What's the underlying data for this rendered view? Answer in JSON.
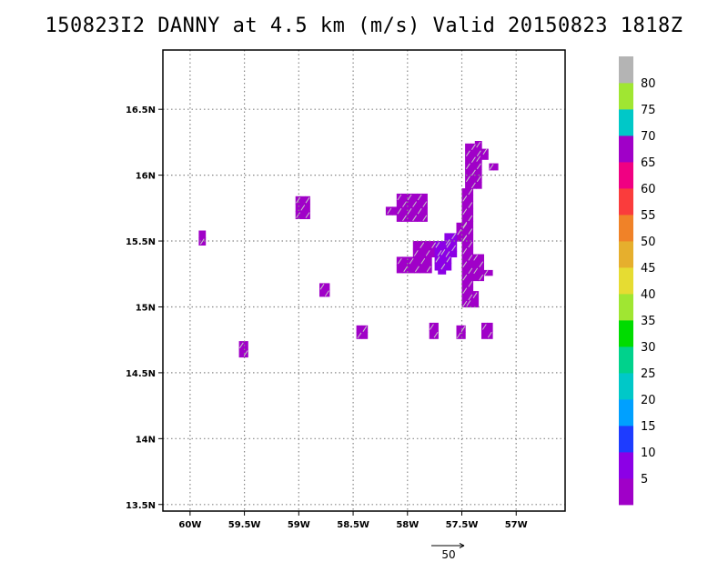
{
  "chart_data": {
    "type": "heatmap",
    "title": "150823I2 DANNY at 4.5 km (m/s) Valid 20150823  1818Z",
    "xlabel": "",
    "ylabel": "",
    "xlim": [
      -60.25,
      -56.55
    ],
    "ylim": [
      13.45,
      16.95
    ],
    "x_ticks": [
      -60,
      -59.5,
      -59,
      -58.5,
      -58,
      -57.5,
      -57
    ],
    "x_tick_labels": [
      "60W",
      "59.5W",
      "59W",
      "58.5W",
      "58W",
      "57.5W",
      "57W"
    ],
    "y_ticks": [
      13.5,
      14,
      14.5,
      15,
      15.5,
      16,
      16.5
    ],
    "y_tick_labels": [
      "13.5N",
      "14N",
      "14.5N",
      "15N",
      "15.5N",
      "16N",
      "16.5N"
    ],
    "grid": true,
    "cell_size_deg": 0.05,
    "colorbar": {
      "labels": [
        "5",
        "10",
        "15",
        "20",
        "25",
        "30",
        "35",
        "40",
        "45",
        "50",
        "55",
        "60",
        "65",
        "70",
        "75",
        "80"
      ],
      "colors": [
        "#a000c8",
        "#8c00e6",
        "#1e3cff",
        "#00a0ff",
        "#00c8c8",
        "#00d28c",
        "#00dc00",
        "#a0e632",
        "#e6dc32",
        "#e6af2d",
        "#f08228",
        "#fa3c3c",
        "#f00082",
        "#a000c8",
        "#00c8c8",
        "#a0e632",
        "#b4b4b4"
      ]
    },
    "reference_vector": {
      "label": "50",
      "magnitude": 50
    },
    "patches": [
      {
        "lon": [
          -59.92,
          -59.86
        ],
        "lat": [
          15.47,
          15.58
        ],
        "value": 3
      },
      {
        "lon": [
          -59.55,
          -59.47
        ],
        "lat": [
          14.62,
          14.74
        ],
        "value": 3
      },
      {
        "lon": [
          -59.03,
          -58.9
        ],
        "lat": [
          15.67,
          15.84
        ],
        "value": 3
      },
      {
        "lon": [
          -58.81,
          -58.72
        ],
        "lat": [
          15.08,
          15.18
        ],
        "value": 3
      },
      {
        "lon": [
          -58.47,
          -58.37
        ],
        "lat": [
          14.76,
          14.86
        ],
        "value": 3
      },
      {
        "lon": [
          -58.1,
          -57.82
        ],
        "lat": [
          15.65,
          15.86
        ],
        "value": 3
      },
      {
        "lon": [
          -58.2,
          -58.08
        ],
        "lat": [
          15.7,
          15.76
        ],
        "value": 3
      },
      {
        "lon": [
          -58.1,
          -57.78
        ],
        "lat": [
          15.26,
          15.38
        ],
        "value": 3
      },
      {
        "lon": [
          -57.95,
          -57.68
        ],
        "lat": [
          15.38,
          15.5
        ],
        "value": 3
      },
      {
        "lon": [
          -57.8,
          -57.72
        ],
        "lat": [
          14.76,
          14.88
        ],
        "value": 3
      },
      {
        "lon": [
          -57.55,
          -57.47
        ],
        "lat": [
          14.76,
          14.86
        ],
        "value": 3
      },
      {
        "lon": [
          -57.55,
          -57.45
        ],
        "lat": [
          15.5,
          15.64
        ],
        "value": 3
      },
      {
        "lon": [
          -57.5,
          -57.4
        ],
        "lat": [
          15.0,
          15.9
        ],
        "value": 3
      },
      {
        "lon": [
          -57.47,
          -57.32
        ],
        "lat": [
          15.9,
          16.24
        ],
        "value": 3
      },
      {
        "lon": [
          -57.38,
          -57.32
        ],
        "lat": [
          16.1,
          16.26
        ],
        "value": 3
      },
      {
        "lon": [
          -57.32,
          -57.26
        ],
        "lat": [
          16.12,
          16.2
        ],
        "value": 3
      },
      {
        "lon": [
          -57.25,
          -57.17
        ],
        "lat": [
          16.04,
          16.09
        ],
        "value": 3
      },
      {
        "lon": [
          -57.4,
          -57.3
        ],
        "lat": [
          15.2,
          15.4
        ],
        "value": 3
      },
      {
        "lon": [
          -57.47,
          -57.35
        ],
        "lat": [
          15.0,
          15.12
        ],
        "value": 3
      },
      {
        "lon": [
          -57.32,
          -57.22
        ],
        "lat": [
          14.76,
          14.88
        ],
        "value": 3
      },
      {
        "lon": [
          -57.3,
          -57.22
        ],
        "lat": [
          15.24,
          15.28
        ],
        "value": 3
      },
      {
        "lon": [
          -57.75,
          -57.6
        ],
        "lat": [
          15.28,
          15.5
        ],
        "value": 8
      },
      {
        "lon": [
          -57.66,
          -57.55
        ],
        "lat": [
          15.38,
          15.56
        ],
        "value": 8
      },
      {
        "lon": [
          -57.72,
          -57.65
        ],
        "lat": [
          15.25,
          15.3
        ],
        "value": 8
      }
    ]
  }
}
